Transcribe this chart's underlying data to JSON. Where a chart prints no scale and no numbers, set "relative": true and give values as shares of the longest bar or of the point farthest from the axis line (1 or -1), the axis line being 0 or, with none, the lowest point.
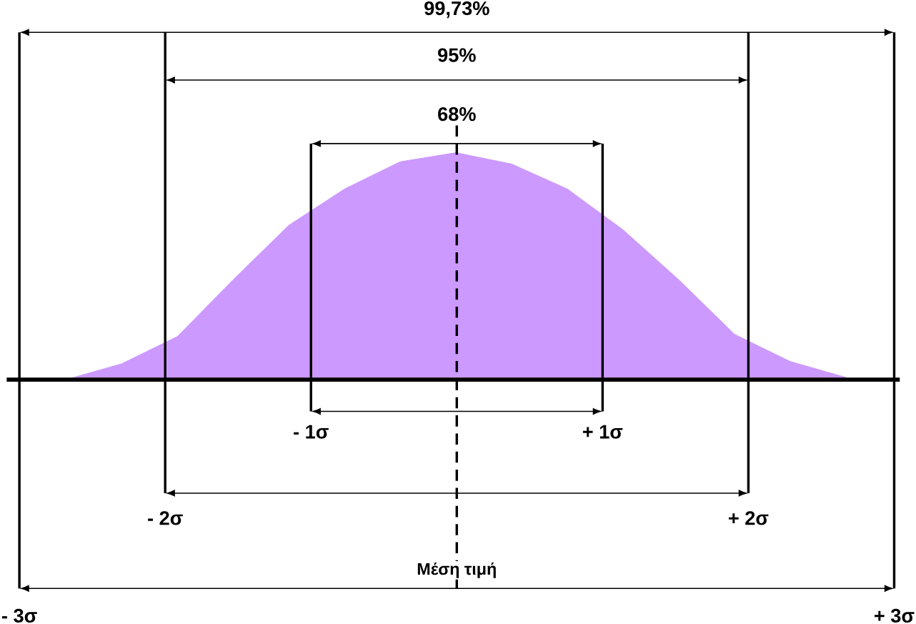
{
  "chart_data": {
    "type": "area",
    "relative": true,
    "color": "#cc99ff",
    "categories": [
      null,
      null,
      null,
      null,
      null,
      null,
      null,
      null,
      null,
      null,
      null,
      null,
      null,
      null,
      null
    ],
    "values": [
      0,
      0.07,
      0.19,
      0.44,
      0.68,
      0.84,
      0.96,
      1,
      0.95,
      0.84,
      0.66,
      0.44,
      0.2,
      0.08,
      0.01
    ],
    "annotations": [
      "99,73%",
      "95%",
      "68%",
      "- 3σ",
      "- 2σ",
      "- 1σ",
      "+ 1σ",
      "+ 2σ",
      "+ 3σ",
      "Μέση τιμή"
    ]
  }
}
